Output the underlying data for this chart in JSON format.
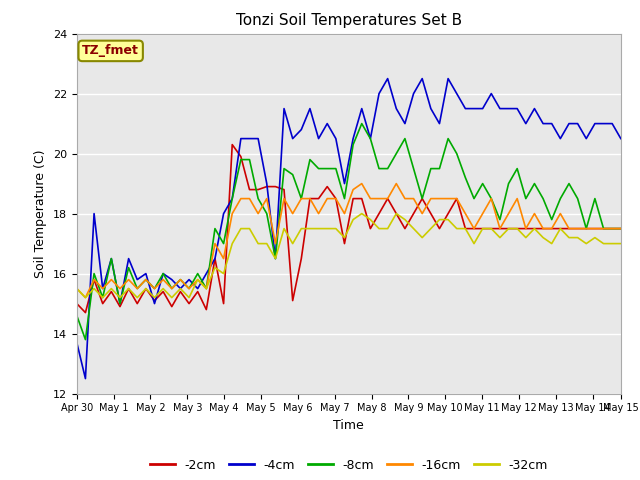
{
  "title": "Tonzi Soil Temperatures Set B",
  "xlabel": "Time",
  "ylabel": "Soil Temperature (C)",
  "ylim": [
    12,
    24
  ],
  "yticks": [
    12,
    14,
    16,
    18,
    20,
    22,
    24
  ],
  "background_color": "#e8e8e8",
  "grid_color": "#ffffff",
  "label_box_text": "TZ_fmet",
  "label_box_color": "#ffff99",
  "label_box_text_color": "#8b0000",
  "series_order": [
    "-2cm",
    "-4cm",
    "-8cm",
    "-16cm",
    "-32cm"
  ],
  "series": {
    "-2cm": {
      "color": "#cc0000",
      "x": [
        0,
        1,
        2,
        3,
        4,
        5,
        6,
        7,
        8,
        9,
        10,
        11,
        12,
        13,
        14,
        15,
        16,
        17,
        18,
        19,
        20,
        21,
        22,
        23,
        24,
        25,
        26,
        27,
        28,
        29,
        30,
        31,
        32,
        33,
        34,
        35,
        36,
        37,
        38,
        39,
        40,
        41,
        42,
        43,
        44,
        45,
        46,
        47,
        48,
        49,
        50,
        51,
        52,
        53,
        54,
        55,
        56,
        57,
        58,
        59,
        60,
        61,
        62,
        63
      ],
      "y": [
        15.0,
        14.7,
        15.8,
        15.0,
        15.4,
        14.9,
        15.5,
        15.0,
        15.5,
        15.1,
        15.4,
        14.9,
        15.4,
        15.0,
        15.4,
        14.8,
        16.5,
        15.0,
        20.3,
        19.9,
        18.8,
        18.8,
        18.9,
        18.9,
        18.8,
        15.1,
        16.5,
        18.5,
        18.5,
        18.9,
        18.5,
        17.0,
        18.5,
        18.5,
        17.5,
        18.0,
        18.5,
        18.0,
        17.5,
        18.0,
        18.5,
        18.0,
        17.5,
        18.0,
        18.5,
        17.5,
        17.5,
        17.5,
        17.5,
        17.5,
        17.5,
        17.5,
        17.5,
        17.5,
        17.5,
        17.5,
        17.5,
        17.5,
        17.5,
        17.5,
        17.5,
        17.5,
        17.5,
        17.5
      ]
    },
    "-4cm": {
      "color": "#0000cc",
      "x": [
        0,
        1,
        2,
        3,
        4,
        5,
        6,
        7,
        8,
        9,
        10,
        11,
        12,
        13,
        14,
        15,
        16,
        17,
        18,
        19,
        20,
        21,
        22,
        23,
        24,
        25,
        26,
        27,
        28,
        29,
        30,
        31,
        32,
        33,
        34,
        35,
        36,
        37,
        38,
        39,
        40,
        41,
        42,
        43,
        44,
        45,
        46,
        47,
        48,
        49,
        50,
        51,
        52,
        53,
        54,
        55,
        56,
        57,
        58,
        59,
        60,
        61,
        62,
        63
      ],
      "y": [
        13.7,
        12.5,
        18.0,
        15.5,
        16.5,
        15.0,
        16.5,
        15.8,
        16.0,
        15.0,
        16.0,
        15.8,
        15.5,
        15.8,
        15.5,
        16.0,
        16.5,
        18.0,
        18.5,
        20.5,
        20.5,
        20.5,
        19.0,
        16.5,
        21.5,
        20.5,
        20.8,
        21.5,
        20.5,
        21.0,
        20.5,
        19.0,
        20.5,
        21.5,
        20.5,
        22.0,
        22.5,
        21.5,
        21.0,
        22.0,
        22.5,
        21.5,
        21.0,
        22.5,
        22.0,
        21.5,
        21.5,
        21.5,
        22.0,
        21.5,
        21.5,
        21.5,
        21.0,
        21.5,
        21.0,
        21.0,
        20.5,
        21.0,
        21.0,
        20.5,
        21.0,
        21.0,
        21.0,
        20.5
      ]
    },
    "-8cm": {
      "color": "#00aa00",
      "x": [
        0,
        1,
        2,
        3,
        4,
        5,
        6,
        7,
        8,
        9,
        10,
        11,
        12,
        13,
        14,
        15,
        16,
        17,
        18,
        19,
        20,
        21,
        22,
        23,
        24,
        25,
        26,
        27,
        28,
        29,
        30,
        31,
        32,
        33,
        34,
        35,
        36,
        37,
        38,
        39,
        40,
        41,
        42,
        43,
        44,
        45,
        46,
        47,
        48,
        49,
        50,
        51,
        52,
        53,
        54,
        55,
        56,
        57,
        58,
        59,
        60,
        61,
        62,
        63
      ],
      "y": [
        14.6,
        13.8,
        16.0,
        15.2,
        16.5,
        15.0,
        16.2,
        15.5,
        15.8,
        15.5,
        16.0,
        15.5,
        15.8,
        15.5,
        16.0,
        15.5,
        17.5,
        17.0,
        18.5,
        19.8,
        19.8,
        18.5,
        18.0,
        16.5,
        19.5,
        19.3,
        18.5,
        19.8,
        19.5,
        19.5,
        19.5,
        18.5,
        20.3,
        21.0,
        20.5,
        19.5,
        19.5,
        20.0,
        20.5,
        19.5,
        18.5,
        19.5,
        19.5,
        20.5,
        20.0,
        19.2,
        18.5,
        19.0,
        18.5,
        17.8,
        19.0,
        19.5,
        18.5,
        19.0,
        18.5,
        17.8,
        18.5,
        19.0,
        18.5,
        17.5,
        18.5,
        17.5,
        17.5,
        17.5
      ]
    },
    "-16cm": {
      "color": "#ff8800",
      "x": [
        0,
        1,
        2,
        3,
        4,
        5,
        6,
        7,
        8,
        9,
        10,
        11,
        12,
        13,
        14,
        15,
        16,
        17,
        18,
        19,
        20,
        21,
        22,
        23,
        24,
        25,
        26,
        27,
        28,
        29,
        30,
        31,
        32,
        33,
        34,
        35,
        36,
        37,
        38,
        39,
        40,
        41,
        42,
        43,
        44,
        45,
        46,
        47,
        48,
        49,
        50,
        51,
        52,
        53,
        54,
        55,
        56,
        57,
        58,
        59,
        60,
        61,
        62,
        63
      ],
      "y": [
        15.5,
        15.2,
        15.8,
        15.5,
        15.8,
        15.5,
        15.8,
        15.5,
        15.8,
        15.5,
        15.8,
        15.5,
        15.8,
        15.5,
        15.8,
        15.5,
        17.0,
        16.5,
        18.0,
        18.5,
        18.5,
        18.0,
        18.5,
        17.0,
        18.5,
        18.0,
        18.5,
        18.5,
        18.0,
        18.5,
        18.5,
        18.0,
        18.8,
        19.0,
        18.5,
        18.5,
        18.5,
        19.0,
        18.5,
        18.5,
        18.0,
        18.5,
        18.5,
        18.5,
        18.5,
        18.0,
        17.5,
        18.0,
        18.5,
        17.5,
        18.0,
        18.5,
        17.5,
        18.0,
        17.5,
        17.5,
        18.0,
        17.5,
        17.5,
        17.5,
        17.5,
        17.5,
        17.5,
        17.5
      ]
    },
    "-32cm": {
      "color": "#cccc00",
      "x": [
        0,
        1,
        2,
        3,
        4,
        5,
        6,
        7,
        8,
        9,
        10,
        11,
        12,
        13,
        14,
        15,
        16,
        17,
        18,
        19,
        20,
        21,
        22,
        23,
        24,
        25,
        26,
        27,
        28,
        29,
        30,
        31,
        32,
        33,
        34,
        35,
        36,
        37,
        38,
        39,
        40,
        41,
        42,
        43,
        44,
        45,
        46,
        47,
        48,
        49,
        50,
        51,
        52,
        53,
        54,
        55,
        56,
        57,
        58,
        59,
        60,
        61,
        62,
        63
      ],
      "y": [
        15.5,
        15.2,
        15.5,
        15.2,
        15.5,
        15.2,
        15.5,
        15.2,
        15.5,
        15.2,
        15.5,
        15.2,
        15.5,
        15.2,
        15.8,
        15.5,
        16.2,
        16.0,
        17.0,
        17.5,
        17.5,
        17.0,
        17.0,
        16.5,
        17.5,
        17.0,
        17.5,
        17.5,
        17.5,
        17.5,
        17.5,
        17.2,
        17.8,
        18.0,
        17.8,
        17.5,
        17.5,
        18.0,
        17.8,
        17.5,
        17.2,
        17.5,
        17.8,
        17.8,
        17.5,
        17.5,
        17.0,
        17.5,
        17.5,
        17.2,
        17.5,
        17.5,
        17.2,
        17.5,
        17.2,
        17.0,
        17.5,
        17.2,
        17.2,
        17.0,
        17.2,
        17.0,
        17.0,
        17.0
      ]
    }
  },
  "n_points": 64,
  "xtick_labels": [
    "Apr 30",
    "May 1",
    "May 2",
    "May 3",
    "May 4",
    "May 5",
    "May 6",
    "May 7",
    "May 8",
    "May 9",
    "May 10",
    "May 11",
    "May 12",
    "May 13",
    "May 14",
    "May 15"
  ],
  "xtick_positions": [
    0,
    4.27,
    8.53,
    12.8,
    17.07,
    21.33,
    25.6,
    29.87,
    34.13,
    38.4,
    42.67,
    46.93,
    51.2,
    55.47,
    59.73,
    63.0
  ],
  "figsize": [
    6.4,
    4.8
  ],
  "dpi": 100
}
